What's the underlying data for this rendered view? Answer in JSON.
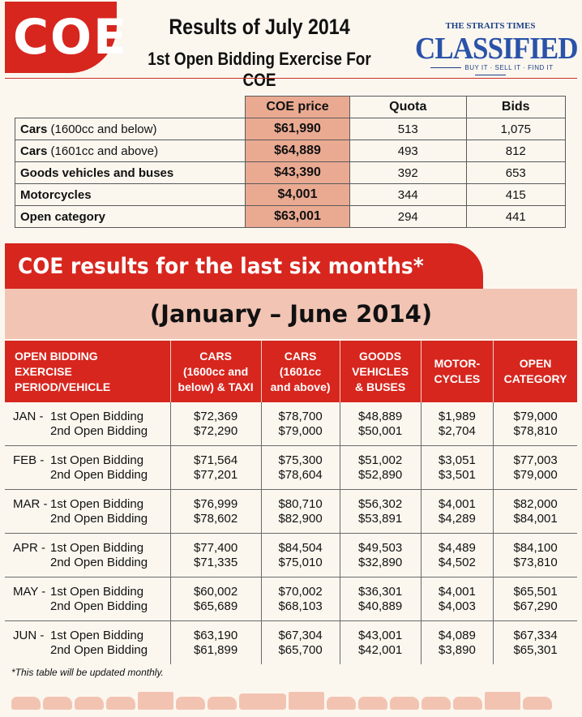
{
  "header": {
    "logo_text": "COE",
    "title": "Results of July 2014",
    "subtitle": "1st Open Bidding Exercise For COE",
    "brand_small": "THE STRAITS TIMES",
    "brand_large": "CLASSIFIED",
    "tagline": "BUY IT · SELL IT · FIND IT"
  },
  "july": {
    "columns": [
      "COE price",
      "Quota",
      "Bids"
    ],
    "rows": [
      {
        "category": "Cars",
        "detail": " (1600cc and below)",
        "price": "$61,990",
        "quota": "513",
        "bids": "1,075"
      },
      {
        "category": "Cars",
        "detail": " (1601cc and above)",
        "price": "$64,889",
        "quota": "493",
        "bids": "812"
      },
      {
        "category": "Goods vehicles and buses",
        "detail": "",
        "price": "$43,390",
        "quota": "392",
        "bids": "653"
      },
      {
        "category": "Motorcycles",
        "detail": "",
        "price": "$4,001",
        "quota": "344",
        "bids": "415"
      },
      {
        "category": "Open category",
        "detail": "",
        "price": "$63,001",
        "quota": "294",
        "bids": "441"
      }
    ]
  },
  "six_months": {
    "banner": "COE results for the last six months*",
    "period": "(January – June 2014)",
    "headers": [
      [
        "OPEN BIDDING",
        "EXERCISE",
        "PERIOD/VEHICLE"
      ],
      [
        "CARS",
        "(1600cc and",
        "below) & TAXI"
      ],
      [
        "CARS",
        "(1601cc",
        "and above)"
      ],
      [
        "GOODS",
        "VEHICLES",
        "& BUSES"
      ],
      [
        "MOTOR-",
        "CYCLES"
      ],
      [
        "OPEN",
        "CATEGORY"
      ]
    ],
    "first_label": "1st Open Bidding",
    "second_label": "2nd Open Bidding",
    "rows": [
      {
        "month": "JAN -",
        "values": [
          [
            "$72,369",
            "$72,290"
          ],
          [
            "$78,700",
            "$79,000"
          ],
          [
            "$48,889",
            "$50,001"
          ],
          [
            "$1,989",
            "$2,704"
          ],
          [
            "$79,000",
            "$78,810"
          ]
        ]
      },
      {
        "month": "FEB -",
        "values": [
          [
            "$71,564",
            "$77,201"
          ],
          [
            "$75,300",
            "$78,604"
          ],
          [
            "$51,002",
            "$52,890"
          ],
          [
            "$3,051",
            "$3,501"
          ],
          [
            "$77,003",
            "$79,000"
          ]
        ]
      },
      {
        "month": "MAR -",
        "values": [
          [
            "$76,999",
            "$78,602"
          ],
          [
            "$80,710",
            "$82,900"
          ],
          [
            "$56,302",
            "$53,891"
          ],
          [
            "$4,001",
            "$4,289"
          ],
          [
            "$82,000",
            "$84,001"
          ]
        ]
      },
      {
        "month": "APR -",
        "values": [
          [
            "$77,400",
            "$71,335"
          ],
          [
            "$84,504",
            "$75,010"
          ],
          [
            "$49,503",
            "$32,890"
          ],
          [
            "$4,489",
            "$4,502"
          ],
          [
            "$84,100",
            "$73,810"
          ]
        ]
      },
      {
        "month": "MAY -",
        "values": [
          [
            "$60,002",
            "$65,689"
          ],
          [
            "$70,002",
            "$68,103"
          ],
          [
            "$36,301",
            "$40,889"
          ],
          [
            "$4,001",
            "$4,003"
          ],
          [
            "$65,501",
            "$67,290"
          ]
        ]
      },
      {
        "month": "JUN -",
        "values": [
          [
            "$63,190",
            "$61,899"
          ],
          [
            "$67,304",
            "$65,700"
          ],
          [
            "$43,001",
            "$42,001"
          ],
          [
            "$4,089",
            "$3,890"
          ],
          [
            "$67,334",
            "$65,301"
          ]
        ]
      }
    ],
    "footnote": "*This table will be updated monthly."
  },
  "decor": {
    "vehicle_icons": [
      "car-icon",
      "car-icon",
      "car-icon",
      "car-icon",
      "truck-icon",
      "car-icon",
      "car-icon",
      "bus-icon",
      "truck-icon",
      "car-icon",
      "car-icon",
      "car-icon",
      "car-icon",
      "car-icon",
      "truck-icon",
      "car-icon"
    ]
  },
  "colors": {
    "accent_red": "#d7261e",
    "price_highlight": "#eaaa92",
    "subband": "#f1c4b4",
    "brand_blue": "#2a52a8"
  }
}
